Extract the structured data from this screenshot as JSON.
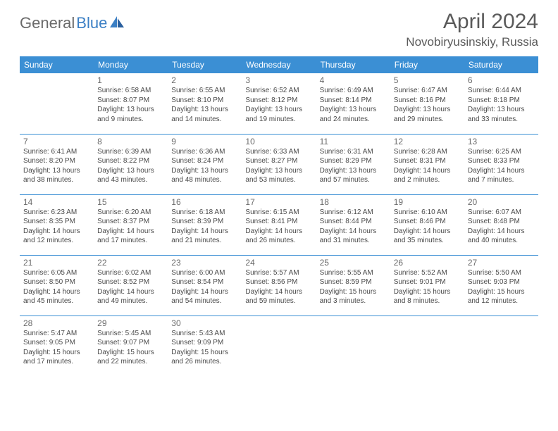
{
  "logo": {
    "text1": "General",
    "text2": "Blue"
  },
  "title": "April 2024",
  "location": "Novobiryusinskiy, Russia",
  "colors": {
    "header_bg": "#3b8fd4",
    "header_text": "#ffffff",
    "divider": "#3b8fd4",
    "logo_gray": "#6a6a6a",
    "logo_blue": "#3b7fc4",
    "title_color": "#5a5a5a",
    "text": "#4a4a4a"
  },
  "weekdays": [
    "Sunday",
    "Monday",
    "Tuesday",
    "Wednesday",
    "Thursday",
    "Friday",
    "Saturday"
  ],
  "weeks": [
    [
      null,
      {
        "day": "1",
        "sunrise": "Sunrise: 6:58 AM",
        "sunset": "Sunset: 8:07 PM",
        "daylight": "Daylight: 13 hours and 9 minutes."
      },
      {
        "day": "2",
        "sunrise": "Sunrise: 6:55 AM",
        "sunset": "Sunset: 8:10 PM",
        "daylight": "Daylight: 13 hours and 14 minutes."
      },
      {
        "day": "3",
        "sunrise": "Sunrise: 6:52 AM",
        "sunset": "Sunset: 8:12 PM",
        "daylight": "Daylight: 13 hours and 19 minutes."
      },
      {
        "day": "4",
        "sunrise": "Sunrise: 6:49 AM",
        "sunset": "Sunset: 8:14 PM",
        "daylight": "Daylight: 13 hours and 24 minutes."
      },
      {
        "day": "5",
        "sunrise": "Sunrise: 6:47 AM",
        "sunset": "Sunset: 8:16 PM",
        "daylight": "Daylight: 13 hours and 29 minutes."
      },
      {
        "day": "6",
        "sunrise": "Sunrise: 6:44 AM",
        "sunset": "Sunset: 8:18 PM",
        "daylight": "Daylight: 13 hours and 33 minutes."
      }
    ],
    [
      {
        "day": "7",
        "sunrise": "Sunrise: 6:41 AM",
        "sunset": "Sunset: 8:20 PM",
        "daylight": "Daylight: 13 hours and 38 minutes."
      },
      {
        "day": "8",
        "sunrise": "Sunrise: 6:39 AM",
        "sunset": "Sunset: 8:22 PM",
        "daylight": "Daylight: 13 hours and 43 minutes."
      },
      {
        "day": "9",
        "sunrise": "Sunrise: 6:36 AM",
        "sunset": "Sunset: 8:24 PM",
        "daylight": "Daylight: 13 hours and 48 minutes."
      },
      {
        "day": "10",
        "sunrise": "Sunrise: 6:33 AM",
        "sunset": "Sunset: 8:27 PM",
        "daylight": "Daylight: 13 hours and 53 minutes."
      },
      {
        "day": "11",
        "sunrise": "Sunrise: 6:31 AM",
        "sunset": "Sunset: 8:29 PM",
        "daylight": "Daylight: 13 hours and 57 minutes."
      },
      {
        "day": "12",
        "sunrise": "Sunrise: 6:28 AM",
        "sunset": "Sunset: 8:31 PM",
        "daylight": "Daylight: 14 hours and 2 minutes."
      },
      {
        "day": "13",
        "sunrise": "Sunrise: 6:25 AM",
        "sunset": "Sunset: 8:33 PM",
        "daylight": "Daylight: 14 hours and 7 minutes."
      }
    ],
    [
      {
        "day": "14",
        "sunrise": "Sunrise: 6:23 AM",
        "sunset": "Sunset: 8:35 PM",
        "daylight": "Daylight: 14 hours and 12 minutes."
      },
      {
        "day": "15",
        "sunrise": "Sunrise: 6:20 AM",
        "sunset": "Sunset: 8:37 PM",
        "daylight": "Daylight: 14 hours and 17 minutes."
      },
      {
        "day": "16",
        "sunrise": "Sunrise: 6:18 AM",
        "sunset": "Sunset: 8:39 PM",
        "daylight": "Daylight: 14 hours and 21 minutes."
      },
      {
        "day": "17",
        "sunrise": "Sunrise: 6:15 AM",
        "sunset": "Sunset: 8:41 PM",
        "daylight": "Daylight: 14 hours and 26 minutes."
      },
      {
        "day": "18",
        "sunrise": "Sunrise: 6:12 AM",
        "sunset": "Sunset: 8:44 PM",
        "daylight": "Daylight: 14 hours and 31 minutes."
      },
      {
        "day": "19",
        "sunrise": "Sunrise: 6:10 AM",
        "sunset": "Sunset: 8:46 PM",
        "daylight": "Daylight: 14 hours and 35 minutes."
      },
      {
        "day": "20",
        "sunrise": "Sunrise: 6:07 AM",
        "sunset": "Sunset: 8:48 PM",
        "daylight": "Daylight: 14 hours and 40 minutes."
      }
    ],
    [
      {
        "day": "21",
        "sunrise": "Sunrise: 6:05 AM",
        "sunset": "Sunset: 8:50 PM",
        "daylight": "Daylight: 14 hours and 45 minutes."
      },
      {
        "day": "22",
        "sunrise": "Sunrise: 6:02 AM",
        "sunset": "Sunset: 8:52 PM",
        "daylight": "Daylight: 14 hours and 49 minutes."
      },
      {
        "day": "23",
        "sunrise": "Sunrise: 6:00 AM",
        "sunset": "Sunset: 8:54 PM",
        "daylight": "Daylight: 14 hours and 54 minutes."
      },
      {
        "day": "24",
        "sunrise": "Sunrise: 5:57 AM",
        "sunset": "Sunset: 8:56 PM",
        "daylight": "Daylight: 14 hours and 59 minutes."
      },
      {
        "day": "25",
        "sunrise": "Sunrise: 5:55 AM",
        "sunset": "Sunset: 8:59 PM",
        "daylight": "Daylight: 15 hours and 3 minutes."
      },
      {
        "day": "26",
        "sunrise": "Sunrise: 5:52 AM",
        "sunset": "Sunset: 9:01 PM",
        "daylight": "Daylight: 15 hours and 8 minutes."
      },
      {
        "day": "27",
        "sunrise": "Sunrise: 5:50 AM",
        "sunset": "Sunset: 9:03 PM",
        "daylight": "Daylight: 15 hours and 12 minutes."
      }
    ],
    [
      {
        "day": "28",
        "sunrise": "Sunrise: 5:47 AM",
        "sunset": "Sunset: 9:05 PM",
        "daylight": "Daylight: 15 hours and 17 minutes."
      },
      {
        "day": "29",
        "sunrise": "Sunrise: 5:45 AM",
        "sunset": "Sunset: 9:07 PM",
        "daylight": "Daylight: 15 hours and 22 minutes."
      },
      {
        "day": "30",
        "sunrise": "Sunrise: 5:43 AM",
        "sunset": "Sunset: 9:09 PM",
        "daylight": "Daylight: 15 hours and 26 minutes."
      },
      null,
      null,
      null,
      null
    ]
  ]
}
